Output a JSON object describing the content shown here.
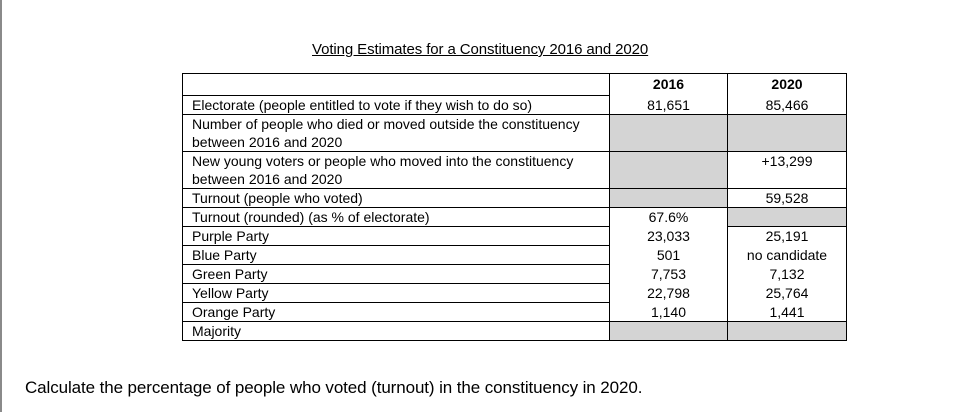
{
  "title": "Voting Estimates for a Constituency 2016 and 2020",
  "table": {
    "columns": [
      "2016",
      "2020"
    ],
    "rows": [
      {
        "label": "Electorate (people entitled to vote if they wish to do so)",
        "v2016": "81,651",
        "v2020": "85,466"
      },
      {
        "label": "Number of people who died or moved outside the constituency between 2016 and 2020",
        "v2016": "",
        "v2020": ""
      },
      {
        "label": "New young voters or people who moved into the constituency between 2016 and 2020",
        "v2016": "",
        "v2020": "+13,299"
      },
      {
        "label": "Turnout (people who voted)",
        "v2016": "",
        "v2020": "59,528"
      },
      {
        "label": "Turnout (rounded) (as % of electorate)",
        "v2016": "67.6%",
        "v2020": ""
      },
      {
        "label": "Purple Party",
        "v2016": "23,033",
        "v2020": "25,191"
      },
      {
        "label": "Blue Party",
        "v2016": "501",
        "v2020": "no candidate"
      },
      {
        "label": "Green Party",
        "v2016": "7,753",
        "v2020": "7,132"
      },
      {
        "label": "Yellow Party",
        "v2016": "22,798",
        "v2020": "25,764"
      },
      {
        "label": "Orange Party",
        "v2016": "1,140",
        "v2020": "1,441"
      },
      {
        "label": "Majority",
        "v2016": "",
        "v2020": ""
      }
    ]
  },
  "question": "Calculate the percentage of people who voted (turnout) in the constituency in 2020."
}
